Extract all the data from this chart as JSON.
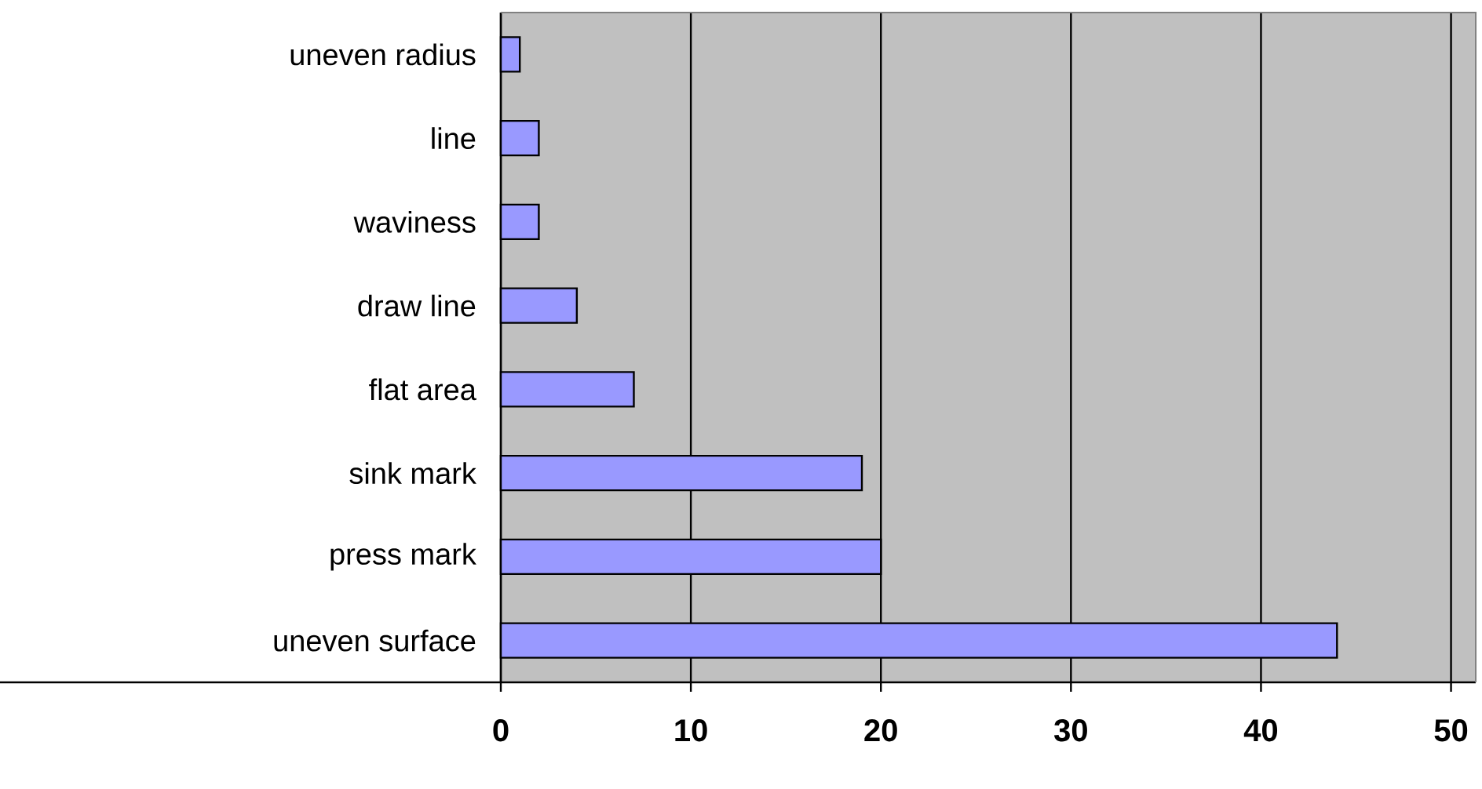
{
  "chart_data": {
    "type": "bar",
    "orientation": "horizontal",
    "categories": [
      "uneven radius",
      "line",
      "waviness",
      "draw line",
      "flat area",
      "sink mark",
      "press mark",
      "uneven surface"
    ],
    "values": [
      1,
      2,
      2,
      4,
      7,
      19,
      20,
      44
    ],
    "color": "#9999ff",
    "xlim": [
      0,
      51.3
    ],
    "xticks": [
      0,
      10,
      20,
      30,
      40,
      50
    ],
    "grid": "x"
  }
}
